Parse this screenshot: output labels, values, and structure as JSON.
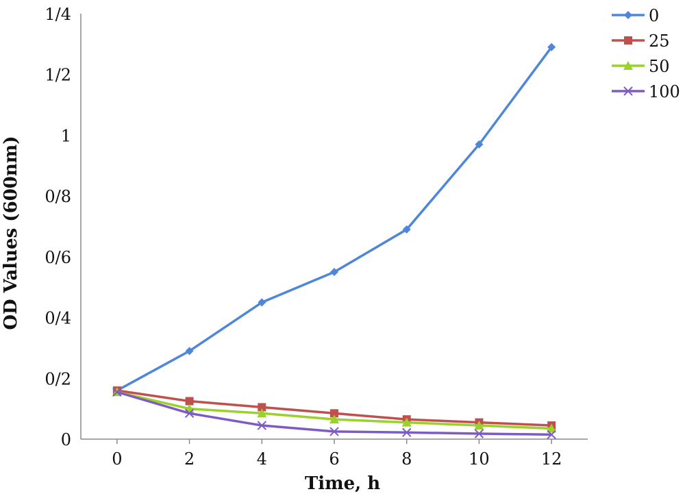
{
  "chart_data": {
    "type": "line",
    "xlabel": "Time, h",
    "ylabel": "OD Values (600nm)",
    "x": [
      0,
      2,
      4,
      6,
      8,
      10,
      12
    ],
    "xlim": [
      -1,
      13
    ],
    "ylim": [
      0,
      1.4
    ],
    "y_ticks": [
      0,
      0.2,
      0.4,
      0.6,
      0.8,
      1,
      1.2,
      1.4
    ],
    "y_tick_labels": [
      "0",
      "0/2",
      "0/4",
      "0/6",
      "0/8",
      "1",
      "1/2",
      "1/4"
    ],
    "x_tick_labels": [
      "0",
      "2",
      "4",
      "6",
      "8",
      "10",
      "12"
    ],
    "grid": false,
    "legend_position": "top-right",
    "series": [
      {
        "name": "0",
        "color": "#4F86D9",
        "marker": "diamond",
        "values": [
          0.16,
          0.29,
          0.45,
          0.55,
          0.69,
          0.97,
          1.29
        ]
      },
      {
        "name": "25",
        "color": "#C0504D",
        "marker": "square",
        "values": [
          0.16,
          0.125,
          0.105,
          0.085,
          0.065,
          0.055,
          0.045
        ]
      },
      {
        "name": "50",
        "color": "#9BD12B",
        "marker": "triangle",
        "values": [
          0.155,
          0.1,
          0.085,
          0.065,
          0.055,
          0.045,
          0.035
        ]
      },
      {
        "name": "100",
        "color": "#7E5BC4",
        "marker": "x",
        "values": [
          0.155,
          0.085,
          0.045,
          0.025,
          0.022,
          0.018,
          0.015
        ]
      }
    ]
  }
}
